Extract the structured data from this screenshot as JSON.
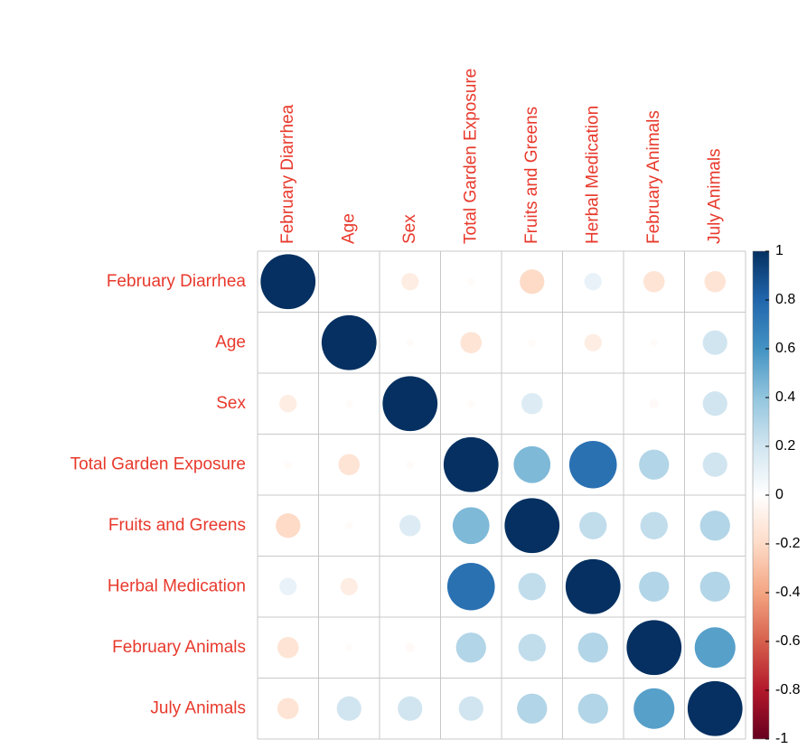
{
  "chart_data": {
    "type": "corrplot",
    "categories": [
      "February Diarrhea",
      "Age",
      "Sex",
      "Total Garden Exposure",
      "Fruits and Greens",
      "Herbal Medication",
      "February Animals",
      "July Animals"
    ],
    "matrix": [
      [
        1,
        0,
        -0.1,
        -0.02,
        -0.2,
        0.1,
        -0.15,
        -0.15
      ],
      [
        0,
        1,
        -0.02,
        -0.15,
        -0.02,
        -0.1,
        -0.02,
        0.2
      ],
      [
        -0.1,
        -0.02,
        1,
        -0.02,
        0.15,
        0,
        -0.03,
        0.2
      ],
      [
        -0.02,
        -0.15,
        -0.02,
        1,
        0.45,
        0.75,
        0.3,
        0.2
      ],
      [
        -0.2,
        -0.02,
        0.15,
        0.45,
        1,
        0.25,
        0.25,
        0.3
      ],
      [
        0.1,
        -0.1,
        0,
        0.75,
        0.25,
        1,
        0.3,
        0.3
      ],
      [
        -0.15,
        -0.02,
        -0.03,
        0.3,
        0.25,
        0.3,
        1,
        0.55
      ],
      [
        -0.15,
        0.2,
        0.2,
        0.2,
        0.3,
        0.3,
        0.55,
        1
      ]
    ],
    "colorscale": [
      "#67001F",
      "#B2182B",
      "#D6604D",
      "#F4A582",
      "#FDDBC7",
      "#FFFFFF",
      "#D1E5F0",
      "#92C5DE",
      "#4393C3",
      "#2166AC",
      "#053061"
    ],
    "clim": [
      -1,
      1
    ],
    "cticks": [
      -1,
      -0.8,
      -0.6,
      -0.4,
      -0.2,
      0,
      0.2,
      0.4,
      0.6,
      0.8,
      1
    ],
    "label_color": "#E8392C"
  }
}
